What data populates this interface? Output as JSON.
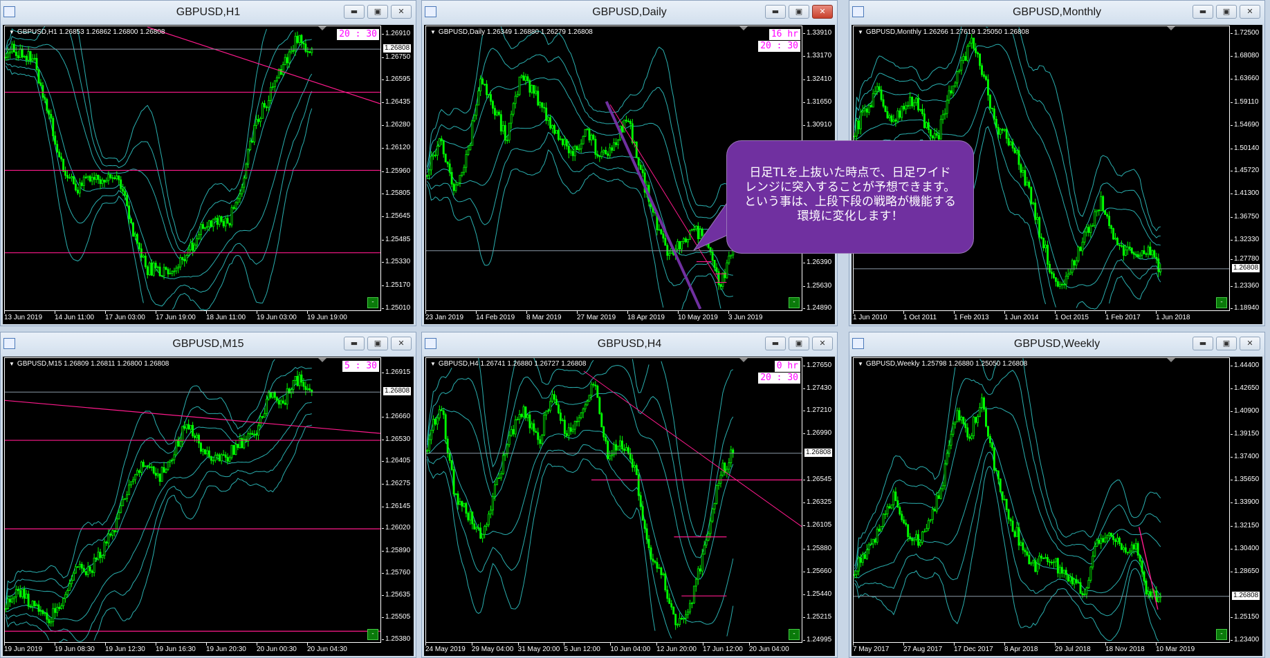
{
  "colors": {
    "candle": "#00ff00",
    "band": "#2ab0b0",
    "level": "#ff1a8c",
    "trend": "#7030a0",
    "timer": "#ff00ff",
    "callout": "#7030a0"
  },
  "icons": {
    "minimize": "minimize-icon",
    "maximize": "restore-icon",
    "close": "close-icon"
  },
  "callout": {
    "text": "日足TLを上抜いた時点で、日足ワイド\nレンジに突入することが予想できます。\nという事は、上段下段の戦略が機能する\n環境に変化します！"
  },
  "current_price": "1.26808",
  "panels": [
    {
      "title": "GBPUSD,H1",
      "ohlc": "GBPUSD,H1  1.26853 1.26862 1.26800 1.26808",
      "timer": [
        "20 : 30"
      ],
      "show_price": true,
      "ticks": [
        "1.26910",
        "1.26750",
        "1.26595",
        "1.26435",
        "1.26280",
        "1.26120",
        "1.25960",
        "1.25805",
        "1.25645",
        "1.25485",
        "1.25330",
        "1.25170",
        "1.25010"
      ],
      "xlabels": [
        "13 Jun 2019",
        "14 Jun 11:00",
        "17 Jun 03:00",
        "17 Jun 19:00",
        "18 Jun 11:00",
        "19 Jun 03:00",
        "19 Jun 19:00"
      ],
      "levels": [
        1.2651,
        1.2597,
        1.254
      ],
      "path": [
        1.268,
        1.2679,
        1.2672,
        1.264,
        1.26,
        1.2585,
        1.259,
        1.2588,
        1.2595,
        1.256,
        1.253,
        1.2528,
        1.2525,
        1.254,
        1.2555,
        1.2565,
        1.256,
        1.259,
        1.263,
        1.265,
        1.2672,
        1.2688,
        1.2681
      ]
    },
    {
      "title": "GBPUSD,Daily",
      "ohlc": "GBPUSD,Daily  1.26349 1.26880 1.26279 1.26808",
      "timer": [
        "16 hr",
        "20 : 30"
      ],
      "show_price": false,
      "ticks": [
        "1.33910",
        "1.33170",
        "1.32410",
        "1.31650",
        "1.30910",
        "1.26390",
        "1.25630",
        "1.24890"
      ],
      "xlabels": [
        "23 Jan 2019",
        "14 Feb 2019",
        "8 Mar 2019",
        "27 Mar 2019",
        "18 Apr 2019",
        "10 May 2019",
        "3 Jun 2019"
      ],
      "levels": [],
      "path": [
        1.295,
        1.305,
        1.29,
        1.298,
        1.325,
        1.315,
        1.305,
        1.325,
        1.32,
        1.312,
        1.305,
        1.3,
        1.308,
        1.298,
        1.302,
        1.313,
        1.295,
        1.28,
        1.268,
        1.269,
        1.275,
        1.272,
        1.257,
        1.268
      ]
    },
    {
      "title": "GBPUSD,Monthly",
      "ohlc": "GBPUSD,Monthly  1.26266 1.27619 1.25050 1.26808",
      "timer": [],
      "show_price": true,
      "ticks": [
        "1.72500",
        "1.68080",
        "1.63660",
        "1.59110",
        "1.54690",
        "1.50140",
        "1.45720",
        "1.41300",
        "1.36750",
        "1.32330",
        "1.27780",
        "1.23360",
        "1.18940"
      ],
      "xlabels": [
        "1 Jun 2010",
        "1 Oct 2011",
        "1 Feb 2013",
        "1 Jun 2014",
        "1 Oct 2015",
        "1 Feb 2017",
        "1 Jun 2018"
      ],
      "levels": [],
      "path": [
        1.54,
        1.58,
        1.62,
        1.55,
        1.58,
        1.6,
        1.55,
        1.52,
        1.6,
        1.67,
        1.71,
        1.64,
        1.55,
        1.52,
        1.48,
        1.4,
        1.32,
        1.24,
        1.25,
        1.3,
        1.35,
        1.4,
        1.33,
        1.3,
        1.29,
        1.31,
        1.268
      ]
    },
    {
      "title": "GBPUSD,M15",
      "ohlc": "GBPUSD,M15  1.26809 1.26811 1.26800 1.26808",
      "timer": [
        "5 : 30"
      ],
      "show_price": true,
      "ticks": [
        "1.26915",
        "1.26660",
        "1.26530",
        "1.26405",
        "1.26275",
        "1.26145",
        "1.26020",
        "1.25890",
        "1.25760",
        "1.25635",
        "1.25505",
        "1.25380"
      ],
      "xlabels": [
        "19 Jun 2019",
        "19 Jun 08:30",
        "19 Jun 12:30",
        "19 Jun 16:30",
        "19 Jun 20:30",
        "20 Jun 00:30",
        "20 Jun 04:30"
      ],
      "levels": [
        1.2653,
        1.2602,
        1.2543
      ],
      "path": [
        1.256,
        1.2565,
        1.2558,
        1.2548,
        1.256,
        1.258,
        1.2578,
        1.259,
        1.2605,
        1.263,
        1.264,
        1.263,
        1.2645,
        1.2665,
        1.265,
        1.264,
        1.2645,
        1.2652,
        1.2655,
        1.268,
        1.2676,
        1.2688,
        1.2681
      ]
    },
    {
      "title": "GBPUSD,H4",
      "ohlc": "GBPUSD,H4  1.26741 1.26880 1.26727 1.26808",
      "timer": [
        "0 hr",
        "20 : 30"
      ],
      "show_price": true,
      "ticks": [
        "1.27650",
        "1.27430",
        "1.27210",
        "1.26990",
        "1.26545",
        "1.26325",
        "1.26105",
        "1.25880",
        "1.25660",
        "1.25440",
        "1.25215",
        "1.24995"
      ],
      "xlabels": [
        "24 May 2019",
        "29 May 04:00",
        "31 May 20:00",
        "5 Jun 12:00",
        "10 Jun 04:00",
        "12 Jun 20:00",
        "17 Jun 12:00",
        "20 Jun 04:00"
      ],
      "levels": [],
      "path": [
        1.269,
        1.273,
        1.264,
        1.262,
        1.26,
        1.265,
        1.27,
        1.272,
        1.269,
        1.274,
        1.27,
        1.272,
        1.275,
        1.268,
        1.269,
        1.266,
        1.258,
        1.256,
        1.251,
        1.254,
        1.259,
        1.266,
        1.2681
      ]
    },
    {
      "title": "GBPUSD,Weekly",
      "ohlc": "GBPUSD,Weekly  1.25798 1.26880 1.25050 1.26808",
      "timer": [],
      "show_price": true,
      "ticks": [
        "1.44400",
        "1.42650",
        "1.40900",
        "1.39150",
        "1.37400",
        "1.35650",
        "1.33900",
        "1.32150",
        "1.30400",
        "1.28650",
        "1.25150",
        "1.23400"
      ],
      "xlabels": [
        "7 May 2017",
        "27 Aug 2017",
        "17 Dec 2017",
        "8 Apr 2018",
        "29 Jul 2018",
        "18 Nov 2018",
        "10 Mar 2019"
      ],
      "levels": [],
      "path": [
        1.29,
        1.3,
        1.32,
        1.345,
        1.32,
        1.31,
        1.33,
        1.36,
        1.41,
        1.39,
        1.42,
        1.365,
        1.33,
        1.31,
        1.29,
        1.3,
        1.29,
        1.28,
        1.27,
        1.31,
        1.32,
        1.3,
        1.31,
        1.27,
        1.2681
      ]
    }
  ]
}
